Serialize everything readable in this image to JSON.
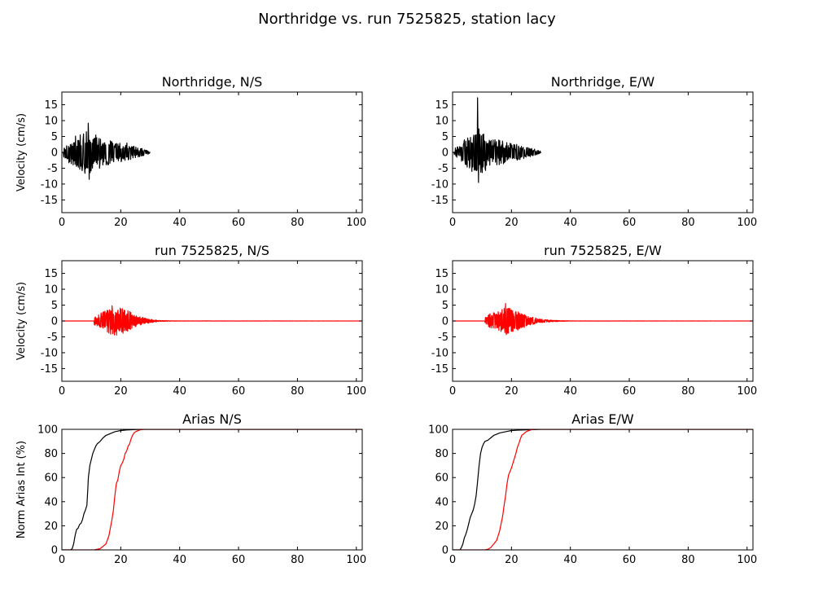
{
  "figure_title": "Northridge vs. run 7525825, station lacy",
  "colors": {
    "recorded": "#000000",
    "simulated": "#ff0000",
    "axes": "#000000",
    "background": "#ffffff"
  },
  "chart_data": [
    {
      "id": "ns-recorded",
      "type": "line",
      "title": "Northridge, N/S",
      "xlabel": "",
      "ylabel": "Velocity (cm/s)",
      "xlim": [
        0,
        102
      ],
      "ylim": [
        -19,
        19
      ],
      "xticks": [
        0,
        20,
        40,
        60,
        80,
        100
      ],
      "yticks": [
        -15,
        -10,
        -5,
        0,
        5,
        10,
        15
      ],
      "series": [
        {
          "color": "#000000",
          "duration": 30,
          "onset": 0.5,
          "peak_time": 9,
          "peak_pos": 9.2,
          "peak_neg": -8.5,
          "envelope": [
            [
              0,
              0.8
            ],
            [
              2,
              3
            ],
            [
              4,
              5
            ],
            [
              6,
              5.5
            ],
            [
              8,
              7
            ],
            [
              9,
              9
            ],
            [
              10,
              7.5
            ],
            [
              12,
              5.5
            ],
            [
              14,
              4.5
            ],
            [
              16,
              4
            ],
            [
              18,
              3
            ],
            [
              20,
              3
            ],
            [
              22,
              3
            ],
            [
              24,
              2
            ],
            [
              26,
              1.5
            ],
            [
              28,
              1
            ],
            [
              30,
              0.5
            ]
          ]
        }
      ]
    },
    {
      "id": "ew-recorded",
      "type": "line",
      "title": "Northridge, E/W",
      "xlabel": "",
      "ylabel": "",
      "xlim": [
        0,
        102
      ],
      "ylim": [
        -19,
        19
      ],
      "xticks": [
        0,
        20,
        40,
        60,
        80,
        100
      ],
      "yticks": [
        -15,
        -10,
        -5,
        0,
        5,
        10,
        15
      ],
      "series": [
        {
          "color": "#000000",
          "duration": 30,
          "onset": 0.5,
          "peak_time": 8.5,
          "peak_pos": 17.2,
          "peak_neg": -9.5,
          "envelope": [
            [
              0,
              0.8
            ],
            [
              2,
              2
            ],
            [
              4,
              4
            ],
            [
              6,
              5.5
            ],
            [
              8,
              8
            ],
            [
              9,
              9
            ],
            [
              10,
              7
            ],
            [
              12,
              5
            ],
            [
              14,
              4
            ],
            [
              16,
              4
            ],
            [
              18,
              3.5
            ],
            [
              20,
              3
            ],
            [
              22,
              2.5
            ],
            [
              24,
              2
            ],
            [
              26,
              1.5
            ],
            [
              28,
              1
            ],
            [
              30,
              0.5
            ]
          ]
        }
      ]
    },
    {
      "id": "ns-simulated",
      "type": "line",
      "title": "run 7525825, N/S",
      "xlabel": "",
      "ylabel": "Velocity (cm/s)",
      "xlim": [
        0,
        102
      ],
      "ylim": [
        -19,
        19
      ],
      "xticks": [
        0,
        20,
        40,
        60,
        80,
        100
      ],
      "yticks": [
        -15,
        -10,
        -5,
        0,
        5,
        10,
        15
      ],
      "series": [
        {
          "color": "#ff0000",
          "duration": 102,
          "onset": 11,
          "peak_time": 17,
          "peak_pos": 4.8,
          "peak_neg": -4,
          "envelope": [
            [
              0,
              0
            ],
            [
              10.5,
              0
            ],
            [
              11,
              1.5
            ],
            [
              13,
              2.5
            ],
            [
              15,
              3.5
            ],
            [
              17,
              4.5
            ],
            [
              19,
              4.5
            ],
            [
              21,
              3.8
            ],
            [
              23,
              3
            ],
            [
              25,
              2
            ],
            [
              27,
              1.3
            ],
            [
              29,
              0.8
            ],
            [
              31,
              0.4
            ],
            [
              33,
              0.2
            ],
            [
              36,
              0.1
            ],
            [
              40,
              0.05
            ],
            [
              102,
              0.02
            ]
          ]
        }
      ]
    },
    {
      "id": "ew-simulated",
      "type": "line",
      "title": "run 7525825, E/W",
      "xlabel": "",
      "ylabel": "",
      "xlim": [
        0,
        102
      ],
      "ylim": [
        -19,
        19
      ],
      "xticks": [
        0,
        20,
        40,
        60,
        80,
        100
      ],
      "yticks": [
        -15,
        -10,
        -5,
        0,
        5,
        10,
        15
      ],
      "series": [
        {
          "color": "#ff0000",
          "duration": 102,
          "onset": 11,
          "peak_time": 18,
          "peak_pos": 5.5,
          "peak_neg": -4.3,
          "envelope": [
            [
              0,
              0
            ],
            [
              10.5,
              0
            ],
            [
              11,
              1.2
            ],
            [
              13,
              2.5
            ],
            [
              15,
              3
            ],
            [
              17,
              4
            ],
            [
              18,
              4.5
            ],
            [
              20,
              3.8
            ],
            [
              22,
              3
            ],
            [
              24,
              2.2
            ],
            [
              26,
              1.5
            ],
            [
              28,
              1
            ],
            [
              30,
              0.6
            ],
            [
              33,
              0.3
            ],
            [
              36,
              0.15
            ],
            [
              40,
              0.05
            ],
            [
              102,
              0.02
            ]
          ]
        }
      ]
    },
    {
      "id": "arias-ns",
      "type": "line",
      "title": "Arias N/S",
      "xlabel": "",
      "ylabel": "Norm Arias Int (%)",
      "xlim": [
        0,
        102
      ],
      "ylim": [
        0,
        100
      ],
      "xticks": [
        0,
        20,
        40,
        60,
        80,
        100
      ],
      "yticks": [
        0,
        20,
        40,
        60,
        80,
        100
      ],
      "series": [
        {
          "color": "#000000",
          "x": [
            0,
            3,
            3.5,
            4,
            4.5,
            5,
            5.5,
            6,
            6.5,
            7,
            7.5,
            8,
            8.5,
            8.8,
            9,
            9.5,
            10,
            10.5,
            11,
            11.5,
            12,
            13,
            14,
            15,
            16,
            17,
            18,
            19,
            20,
            22,
            25,
            28,
            30,
            102
          ],
          "y": [
            0,
            0,
            1,
            5,
            12,
            17,
            18,
            21,
            22,
            25,
            30,
            33,
            37,
            50,
            60,
            70,
            75,
            80,
            83,
            86,
            88,
            90,
            93,
            95,
            96,
            97,
            98,
            98.5,
            99,
            99.5,
            99.8,
            100,
            100,
            100
          ]
        },
        {
          "color": "#ff0000",
          "x": [
            0,
            10,
            11,
            12,
            13,
            14,
            15,
            16,
            17,
            17.5,
            18,
            18.5,
            19,
            19.5,
            20,
            20.5,
            21,
            21.5,
            22,
            22.5,
            23,
            23.5,
            24,
            24.5,
            25,
            25.5,
            26,
            26.5,
            27,
            27.5,
            28,
            29,
            102
          ],
          "y": [
            0,
            0,
            0,
            0.5,
            1,
            3,
            5,
            12,
            25,
            33,
            45,
            55,
            58,
            65,
            70,
            72,
            75,
            80,
            82,
            86,
            88,
            92,
            95,
            97,
            98,
            98.5,
            99,
            99.5,
            99.7,
            99.9,
            100,
            100,
            100
          ]
        }
      ]
    },
    {
      "id": "arias-ew",
      "type": "line",
      "title": "Arias E/W",
      "xlabel": "",
      "ylabel": "",
      "xlim": [
        0,
        102
      ],
      "ylim": [
        0,
        100
      ],
      "xticks": [
        0,
        20,
        40,
        60,
        80,
        100
      ],
      "yticks": [
        0,
        20,
        40,
        60,
        80,
        100
      ],
      "series": [
        {
          "color": "#000000",
          "x": [
            0,
            2.5,
            3,
            3.5,
            4,
            4.5,
            5,
            5.5,
            6,
            6.5,
            7,
            7.5,
            8,
            8.5,
            9,
            9.5,
            10,
            10.5,
            11,
            12,
            13,
            14,
            15,
            16,
            17,
            18,
            19,
            20,
            22,
            25,
            28,
            30,
            102
          ],
          "y": [
            0,
            0,
            2,
            5,
            10,
            13,
            17,
            22,
            27,
            30,
            33,
            38,
            45,
            57,
            70,
            80,
            85,
            88,
            90,
            91,
            93,
            95,
            96,
            97,
            97.5,
            98,
            98.5,
            99,
            99.3,
            99.6,
            99.8,
            100,
            100
          ]
        },
        {
          "color": "#ff0000",
          "x": [
            0,
            10,
            11,
            12,
            13,
            14,
            15,
            16,
            17,
            17.5,
            18,
            18.5,
            19,
            19.5,
            20,
            20.5,
            21,
            21.5,
            22,
            22.5,
            23,
            23.5,
            24,
            24.5,
            25,
            25.5,
            26,
            26.5,
            27,
            27.5,
            28,
            29,
            102
          ],
          "y": [
            0,
            0,
            0,
            0.5,
            2,
            5,
            8,
            16,
            28,
            37,
            45,
            55,
            62,
            65,
            68,
            72,
            76,
            80,
            85,
            88,
            92,
            95,
            96,
            97,
            98,
            98.5,
            99,
            99.5,
            99.7,
            99.9,
            100,
            100,
            100
          ]
        }
      ]
    }
  ]
}
